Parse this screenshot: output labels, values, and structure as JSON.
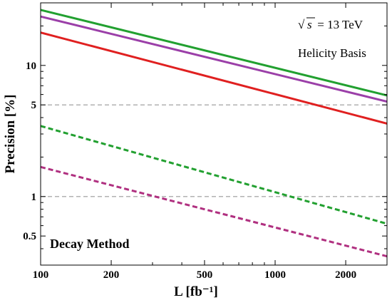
{
  "chart_data": {
    "type": "line",
    "title": "",
    "xlabel": "L [fb⁻¹]",
    "ylabel": "Precision [%]",
    "xscale": "log",
    "yscale": "log",
    "xlim": [
      100,
      3000
    ],
    "ylim": [
      0.3,
      30
    ],
    "grid": false,
    "x_ticks": [
      {
        "value": 100,
        "label": "100"
      },
      {
        "value": 200,
        "label": "200"
      },
      {
        "value": 500,
        "label": "500"
      },
      {
        "value": 1000,
        "label": "1000"
      },
      {
        "value": 2000,
        "label": "2000"
      }
    ],
    "y_ticks": [
      {
        "value": 0.5,
        "label": "0.5"
      },
      {
        "value": 1,
        "label": "1"
      },
      {
        "value": 5,
        "label": "5"
      },
      {
        "value": 10,
        "label": "10"
      }
    ],
    "reference_lines": [
      {
        "y": 5,
        "color": "#999999",
        "style": "dashed"
      },
      {
        "y": 1,
        "color": "#999999",
        "style": "dashed"
      }
    ],
    "series": [
      {
        "color": "#22a030",
        "style": "solid",
        "x": [
          100,
          3000
        ],
        "y": [
          26.5,
          5.9
        ]
      },
      {
        "color": "#9b3fa8",
        "style": "solid",
        "x": [
          100,
          3000
        ],
        "y": [
          23.6,
          5.3
        ]
      },
      {
        "color": "#e02020",
        "style": "solid",
        "x": [
          100,
          3000
        ],
        "y": [
          17.8,
          3.6
        ]
      },
      {
        "color": "#22a030",
        "style": "dashed",
        "x": [
          100,
          3000
        ],
        "y": [
          3.45,
          0.62
        ]
      },
      {
        "color": "#b03080",
        "style": "dashed",
        "x": [
          100,
          3000
        ],
        "y": [
          1.68,
          0.35
        ]
      }
    ],
    "annotations": {
      "energy": {
        "sqrt": "√",
        "variable": "s",
        "rest": " = 13 TeV"
      },
      "basis": "Helicity Basis",
      "method": "Decay Method"
    }
  }
}
